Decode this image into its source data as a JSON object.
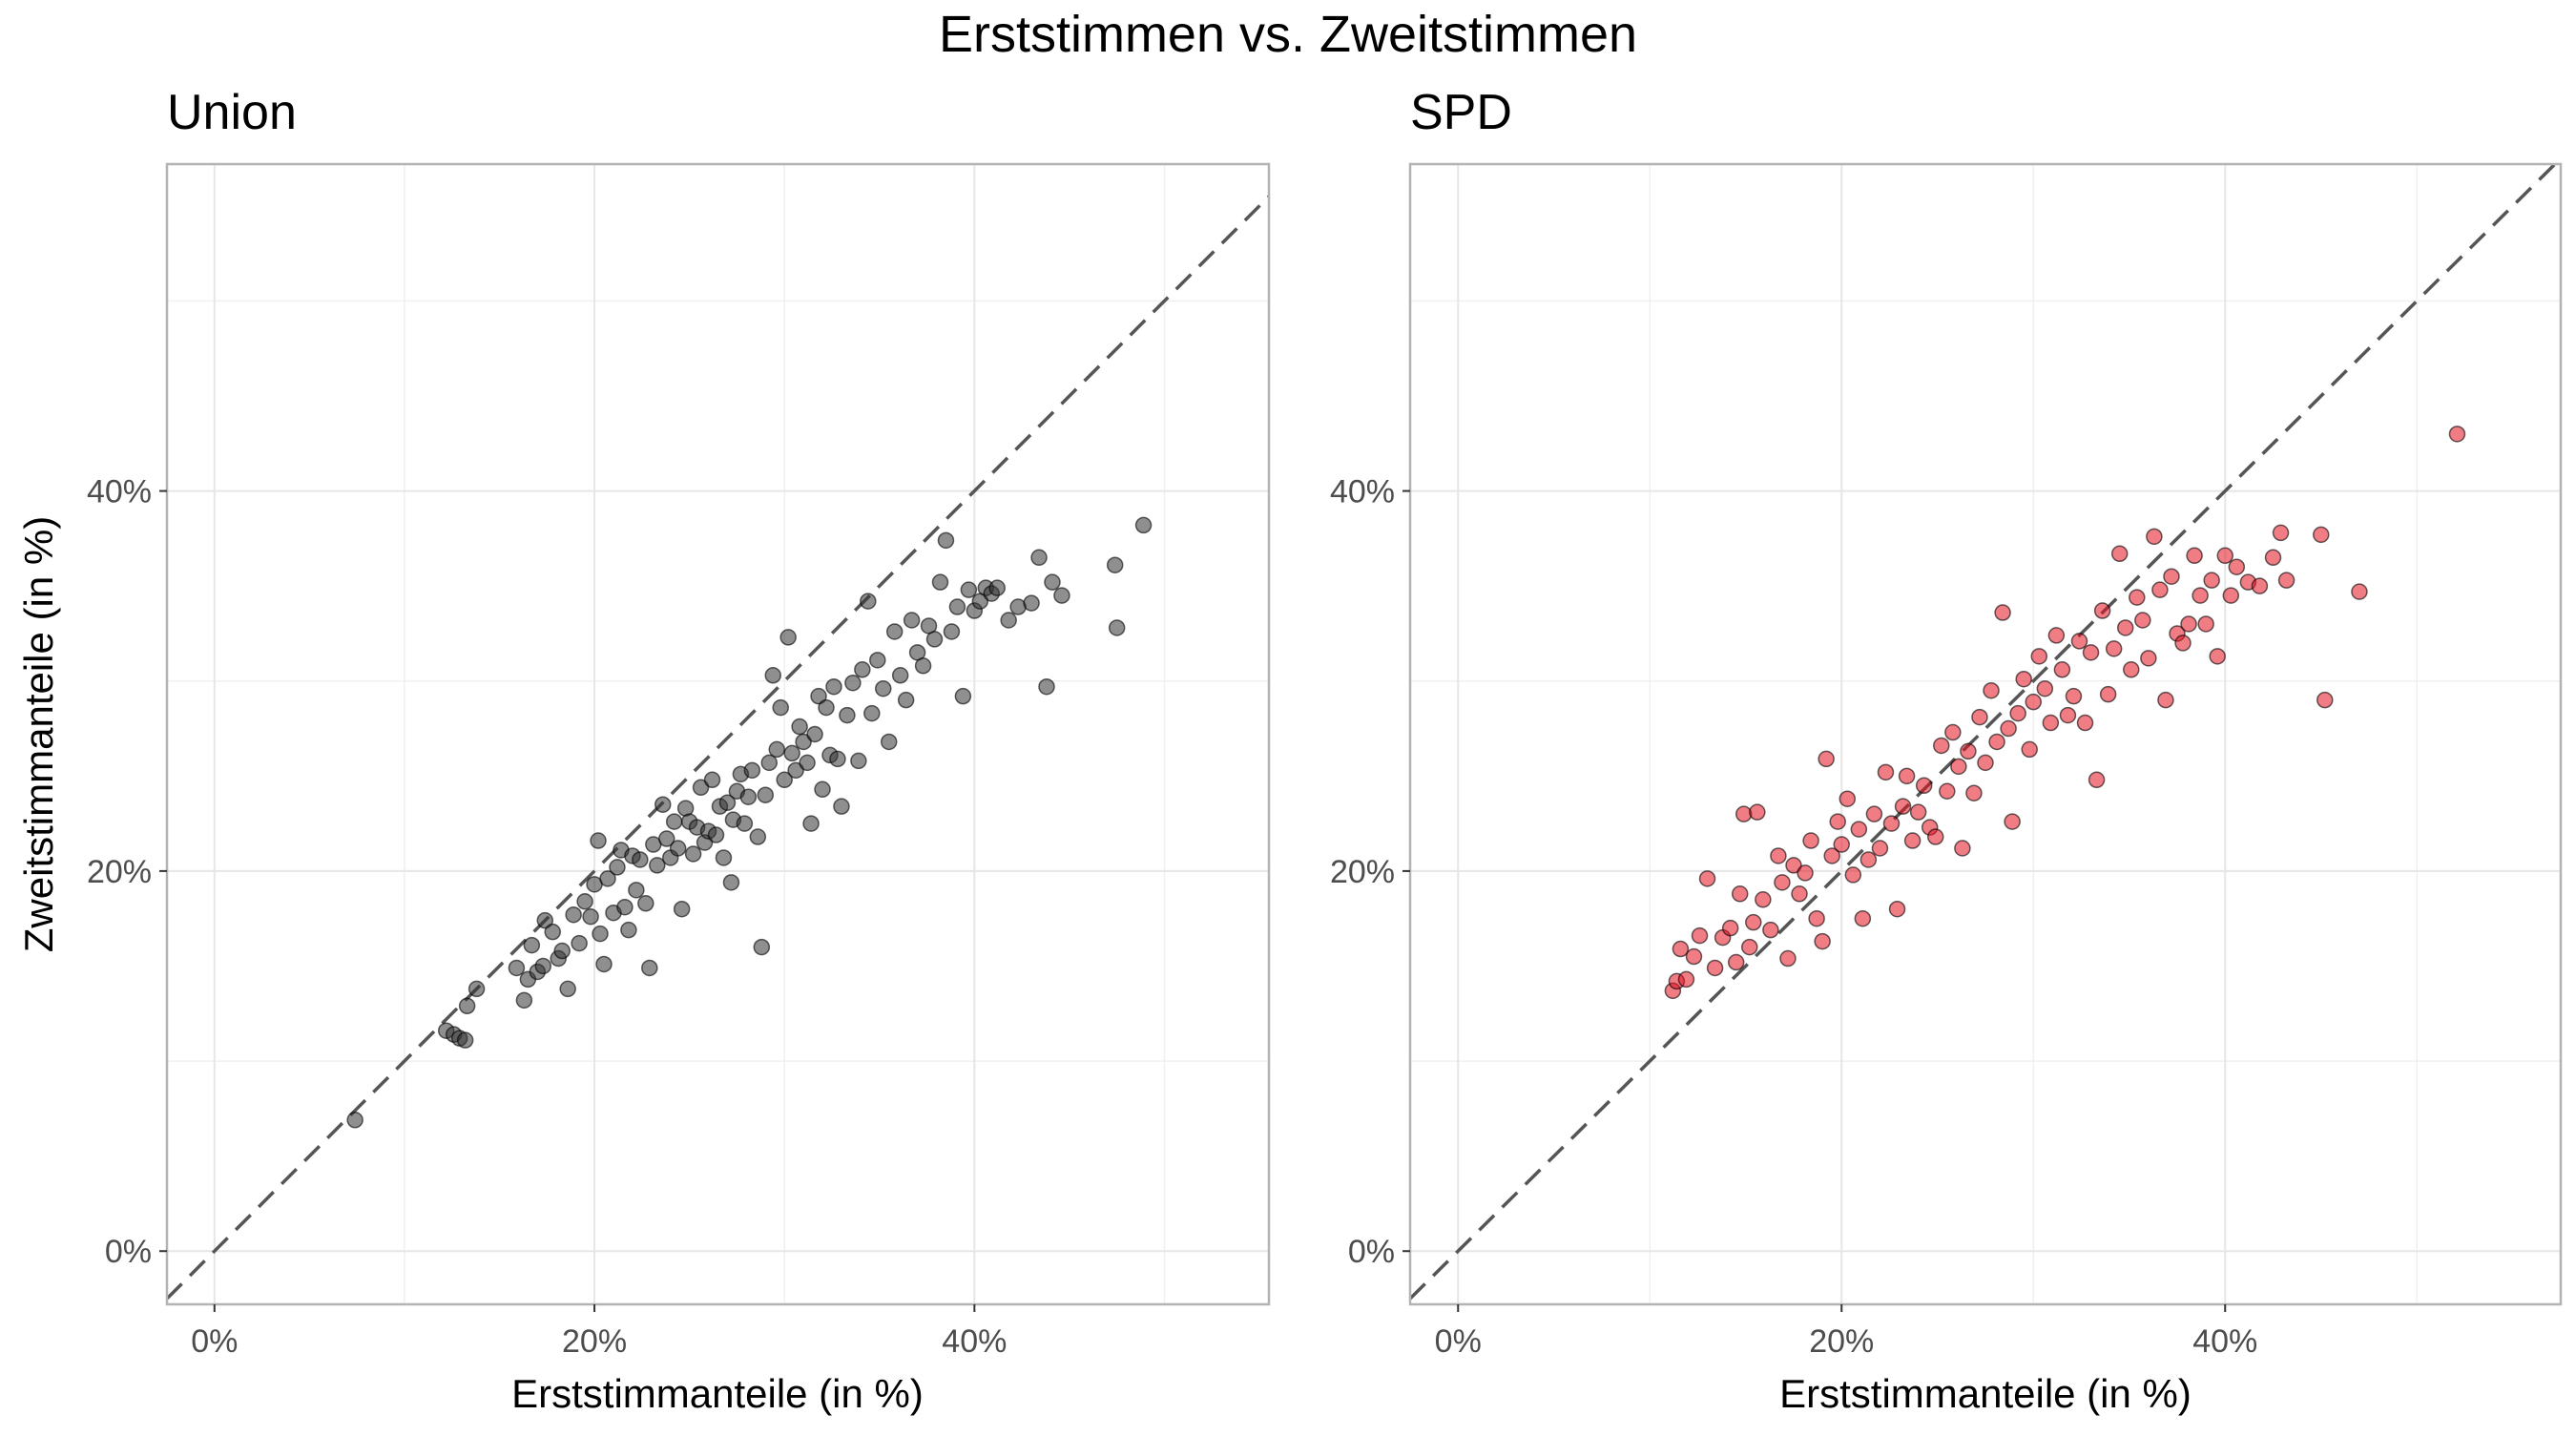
{
  "figure_title": "Erststimmen vs. Zweitstimmen",
  "colors": {
    "union_points": "#333333",
    "spd_points": "#e3101f",
    "reference_line": "#555555",
    "gridline": "#e6e6e6",
    "panel_border": "#b3b3b3"
  },
  "chart_data": [
    {
      "type": "scatter",
      "title": "Union",
      "xlabel": "Erststimmanteile (in %)",
      "ylabel": "Zweitstimmanteile (in %)",
      "xlim": [
        -2.5,
        55.5
      ],
      "ylim": [
        -2.8,
        57.2
      ],
      "x_ticks": [
        0,
        20,
        40
      ],
      "y_ticks": [
        0,
        20,
        40
      ],
      "x_tick_labels": [
        "0%",
        "20%",
        "40%"
      ],
      "y_tick_labels": [
        "0%",
        "20%",
        "40%"
      ],
      "grid": true,
      "reference_line": "y = x (dashed)",
      "point_color": "#333333",
      "points": [
        [
          7.4,
          6.9
        ],
        [
          12.2,
          11.6
        ],
        [
          12.6,
          11.4
        ],
        [
          12.9,
          11.2
        ],
        [
          13.2,
          11.1
        ],
        [
          13.3,
          12.9
        ],
        [
          13.8,
          13.8
        ],
        [
          15.9,
          14.9
        ],
        [
          16.3,
          13.2
        ],
        [
          16.5,
          14.3
        ],
        [
          16.7,
          16.1
        ],
        [
          17.0,
          14.7
        ],
        [
          17.3,
          15.0
        ],
        [
          17.4,
          17.4
        ],
        [
          17.8,
          16.8
        ],
        [
          18.1,
          15.4
        ],
        [
          18.3,
          15.8
        ],
        [
          18.6,
          13.8
        ],
        [
          18.9,
          17.7
        ],
        [
          19.2,
          16.2
        ],
        [
          19.5,
          18.4
        ],
        [
          19.8,
          17.6
        ],
        [
          20.0,
          19.3
        ],
        [
          20.2,
          21.6
        ],
        [
          20.3,
          16.7
        ],
        [
          20.5,
          15.1
        ],
        [
          20.7,
          19.6
        ],
        [
          21.0,
          17.8
        ],
        [
          21.2,
          20.2
        ],
        [
          21.4,
          21.1
        ],
        [
          21.6,
          18.1
        ],
        [
          21.8,
          16.9
        ],
        [
          22.0,
          20.8
        ],
        [
          22.2,
          19.0
        ],
        [
          22.4,
          20.6
        ],
        [
          22.7,
          18.3
        ],
        [
          22.9,
          14.9
        ],
        [
          23.1,
          21.4
        ],
        [
          23.3,
          20.3
        ],
        [
          23.6,
          23.5
        ],
        [
          23.8,
          21.7
        ],
        [
          24.0,
          20.7
        ],
        [
          24.2,
          22.6
        ],
        [
          24.4,
          21.2
        ],
        [
          24.6,
          18.0
        ],
        [
          24.8,
          23.3
        ],
        [
          25.0,
          22.6
        ],
        [
          25.2,
          20.9
        ],
        [
          25.4,
          22.3
        ],
        [
          25.6,
          24.4
        ],
        [
          25.8,
          21.5
        ],
        [
          26.0,
          22.1
        ],
        [
          26.2,
          24.8
        ],
        [
          26.4,
          21.9
        ],
        [
          26.6,
          23.4
        ],
        [
          26.8,
          20.7
        ],
        [
          27.0,
          23.6
        ],
        [
          27.2,
          19.4
        ],
        [
          27.3,
          22.7
        ],
        [
          27.5,
          24.2
        ],
        [
          27.7,
          25.1
        ],
        [
          27.9,
          22.5
        ],
        [
          28.1,
          23.9
        ],
        [
          28.3,
          25.3
        ],
        [
          28.6,
          21.8
        ],
        [
          28.8,
          16.0
        ],
        [
          29.0,
          24.0
        ],
        [
          29.2,
          25.7
        ],
        [
          29.4,
          30.3
        ],
        [
          29.6,
          26.4
        ],
        [
          29.8,
          28.6
        ],
        [
          30.0,
          24.8
        ],
        [
          30.2,
          32.3
        ],
        [
          30.4,
          26.2
        ],
        [
          30.6,
          25.3
        ],
        [
          30.8,
          27.6
        ],
        [
          31.0,
          26.8
        ],
        [
          31.2,
          25.7
        ],
        [
          31.4,
          22.5
        ],
        [
          31.6,
          27.2
        ],
        [
          31.8,
          29.2
        ],
        [
          32.0,
          24.3
        ],
        [
          32.2,
          28.6
        ],
        [
          32.4,
          26.1
        ],
        [
          32.6,
          29.7
        ],
        [
          32.8,
          25.9
        ],
        [
          33.0,
          23.4
        ],
        [
          33.3,
          28.2
        ],
        [
          33.6,
          29.9
        ],
        [
          33.9,
          25.8
        ],
        [
          34.1,
          30.6
        ],
        [
          34.4,
          34.2
        ],
        [
          34.6,
          28.3
        ],
        [
          34.9,
          31.1
        ],
        [
          35.2,
          29.6
        ],
        [
          35.5,
          26.8
        ],
        [
          35.8,
          32.6
        ],
        [
          36.1,
          30.3
        ],
        [
          36.4,
          29.0
        ],
        [
          36.7,
          33.2
        ],
        [
          37.0,
          31.5
        ],
        [
          37.3,
          30.8
        ],
        [
          37.6,
          32.9
        ],
        [
          37.9,
          32.2
        ],
        [
          38.2,
          35.2
        ],
        [
          38.5,
          37.4
        ],
        [
          38.8,
          32.6
        ],
        [
          39.1,
          33.9
        ],
        [
          39.4,
          29.2
        ],
        [
          39.7,
          34.8
        ],
        [
          40.0,
          33.7
        ],
        [
          40.3,
          34.2
        ],
        [
          40.6,
          34.9
        ],
        [
          40.9,
          34.6
        ],
        [
          41.2,
          34.9
        ],
        [
          41.8,
          33.2
        ],
        [
          42.3,
          33.9
        ],
        [
          43.0,
          34.1
        ],
        [
          43.4,
          36.5
        ],
        [
          43.8,
          29.7
        ],
        [
          44.1,
          35.2
        ],
        [
          44.6,
          34.5
        ],
        [
          47.4,
          36.1
        ],
        [
          47.5,
          32.8
        ],
        [
          48.9,
          38.2
        ]
      ]
    },
    {
      "type": "scatter",
      "title": "SPD",
      "xlabel": "Erststimmanteile (in %)",
      "ylabel": "",
      "xlim": [
        -2.5,
        57.5
      ],
      "ylim": [
        -2.8,
        57.2
      ],
      "x_ticks": [
        0,
        20,
        40
      ],
      "y_ticks": [
        0,
        20,
        40
      ],
      "x_tick_labels": [
        "0%",
        "20%",
        "40%"
      ],
      "y_tick_labels": [
        "0%",
        "20%",
        "40%"
      ],
      "grid": true,
      "reference_line": "y = x (dashed)",
      "point_color": "#e3101f",
      "points": [
        [
          11.2,
          13.7
        ],
        [
          11.4,
          14.2
        ],
        [
          11.6,
          15.9
        ],
        [
          11.9,
          14.3
        ],
        [
          12.3,
          15.5
        ],
        [
          12.6,
          16.6
        ],
        [
          13.0,
          19.6
        ],
        [
          13.4,
          14.9
        ],
        [
          13.8,
          16.5
        ],
        [
          14.2,
          17.0
        ],
        [
          14.5,
          15.2
        ],
        [
          14.7,
          18.8
        ],
        [
          14.9,
          23.0
        ],
        [
          15.2,
          16.0
        ],
        [
          15.4,
          17.3
        ],
        [
          15.6,
          23.1
        ],
        [
          15.9,
          18.5
        ],
        [
          16.3,
          16.9
        ],
        [
          16.7,
          20.8
        ],
        [
          16.9,
          19.4
        ],
        [
          17.2,
          15.4
        ],
        [
          17.5,
          20.3
        ],
        [
          17.8,
          18.8
        ],
        [
          18.1,
          19.9
        ],
        [
          18.4,
          21.6
        ],
        [
          18.7,
          17.5
        ],
        [
          19.0,
          16.3
        ],
        [
          19.2,
          25.9
        ],
        [
          19.5,
          20.8
        ],
        [
          19.8,
          22.6
        ],
        [
          20.0,
          21.4
        ],
        [
          20.3,
          23.8
        ],
        [
          20.6,
          19.8
        ],
        [
          20.9,
          22.2
        ],
        [
          21.1,
          17.5
        ],
        [
          21.4,
          20.6
        ],
        [
          21.7,
          23.0
        ],
        [
          22.0,
          21.2
        ],
        [
          22.3,
          25.2
        ],
        [
          22.6,
          22.5
        ],
        [
          22.9,
          18.0
        ],
        [
          23.2,
          23.4
        ],
        [
          23.4,
          25.0
        ],
        [
          23.7,
          21.6
        ],
        [
          24.0,
          23.1
        ],
        [
          24.3,
          24.5
        ],
        [
          24.6,
          22.3
        ],
        [
          24.9,
          21.8
        ],
        [
          25.2,
          26.6
        ],
        [
          25.5,
          24.2
        ],
        [
          25.8,
          27.3
        ],
        [
          26.1,
          25.5
        ],
        [
          26.3,
          21.2
        ],
        [
          26.6,
          26.3
        ],
        [
          26.9,
          24.1
        ],
        [
          27.2,
          28.1
        ],
        [
          27.5,
          25.7
        ],
        [
          27.8,
          29.5
        ],
        [
          28.1,
          26.8
        ],
        [
          28.4,
          33.6
        ],
        [
          28.7,
          27.5
        ],
        [
          28.9,
          22.6
        ],
        [
          29.2,
          28.3
        ],
        [
          29.5,
          30.1
        ],
        [
          29.8,
          26.4
        ],
        [
          30.0,
          28.9
        ],
        [
          30.3,
          31.3
        ],
        [
          30.6,
          29.6
        ],
        [
          30.9,
          27.8
        ],
        [
          31.2,
          32.4
        ],
        [
          31.5,
          30.6
        ],
        [
          31.8,
          28.2
        ],
        [
          32.1,
          29.2
        ],
        [
          32.4,
          32.1
        ],
        [
          32.7,
          27.8
        ],
        [
          33.0,
          31.5
        ],
        [
          33.3,
          24.8
        ],
        [
          33.6,
          33.7
        ],
        [
          33.9,
          29.3
        ],
        [
          34.2,
          31.7
        ],
        [
          34.5,
          36.7
        ],
        [
          34.8,
          32.8
        ],
        [
          35.1,
          30.6
        ],
        [
          35.4,
          34.4
        ],
        [
          35.7,
          33.2
        ],
        [
          36.0,
          31.2
        ],
        [
          36.3,
          37.6
        ],
        [
          36.6,
          34.8
        ],
        [
          36.9,
          29.0
        ],
        [
          37.2,
          35.5
        ],
        [
          37.5,
          32.5
        ],
        [
          37.8,
          32.0
        ],
        [
          38.1,
          33.0
        ],
        [
          38.4,
          36.6
        ],
        [
          38.7,
          34.5
        ],
        [
          39.0,
          33.0
        ],
        [
          39.3,
          35.3
        ],
        [
          39.6,
          31.3
        ],
        [
          40.0,
          36.6
        ],
        [
          40.3,
          34.5
        ],
        [
          40.6,
          36.0
        ],
        [
          41.2,
          35.2
        ],
        [
          41.8,
          35.0
        ],
        [
          42.5,
          36.5
        ],
        [
          42.9,
          37.8
        ],
        [
          43.2,
          35.3
        ],
        [
          45.0,
          37.7
        ],
        [
          45.2,
          29.0
        ],
        [
          47.0,
          34.7
        ],
        [
          52.1,
          43.0
        ]
      ]
    }
  ]
}
